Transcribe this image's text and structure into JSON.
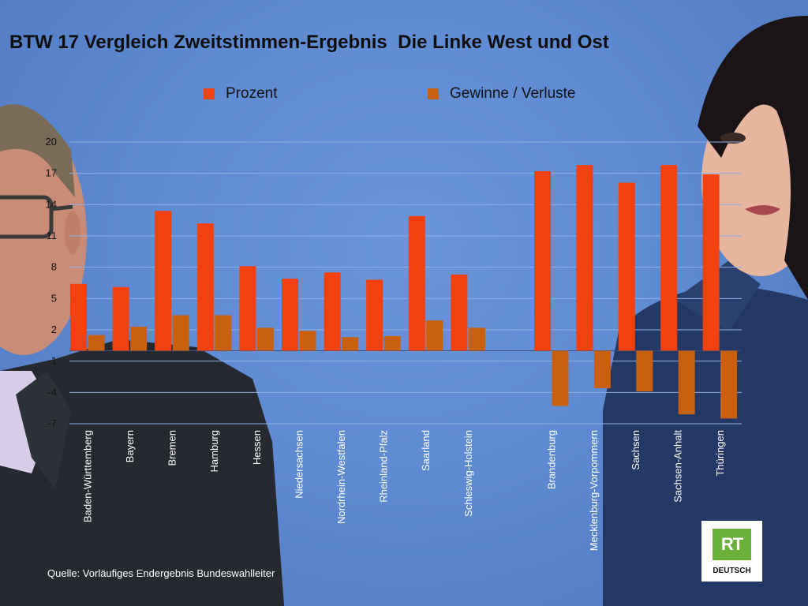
{
  "title": "BTW 17 Vergleich Zweitstimmen-Ergebnis  Die Linke West und Ost",
  "source": "Quelle: Vorläufiges Endergebnis Bundeswahlleiter",
  "logo": {
    "mark": "RT",
    "subtitle": "DEUTSCH"
  },
  "colors": {
    "prozent": "#f2410e",
    "gewinne": "#c9600f",
    "grid": "#8fb0e4"
  },
  "chart_data": {
    "type": "bar",
    "title": "BTW 17 Vergleich Zweitstimmen-Ergebnis  Die Linke West und Ost",
    "xlabel": "",
    "ylabel": "",
    "ylim": [
      -7,
      20
    ],
    "yticks": [
      "20",
      "17",
      "14",
      "11",
      "8",
      "5",
      "2",
      "-1",
      "-4",
      "-7"
    ],
    "grid": "horizontal",
    "legend_position": "top",
    "categories": [
      "Baden-Württemberg",
      "Bayern",
      "Bremen",
      "Hamburg",
      "Hessen",
      "Niedersachsen",
      "Nordrhein-Westfalen",
      "Rheinland-Pfalz",
      "Saarland",
      "Schleswig-Holstein",
      "Brandenburg",
      "Mecklenburg-Vorpommern",
      "Sachsen",
      "Sachsen-Anhalt",
      "Thüringen"
    ],
    "series": [
      {
        "name": "Prozent",
        "values": [
          6.4,
          6.1,
          13.4,
          12.2,
          8.1,
          6.9,
          7.5,
          6.8,
          12.9,
          7.3,
          17.2,
          17.8,
          16.1,
          17.8,
          16.9
        ]
      },
      {
        "name": "Gewinne / Verluste",
        "values": [
          1.5,
          2.3,
          3.4,
          3.4,
          2.2,
          1.9,
          1.3,
          1.4,
          2.9,
          2.2,
          -5.3,
          -3.6,
          -3.9,
          -6.1,
          -6.5
        ]
      }
    ]
  }
}
